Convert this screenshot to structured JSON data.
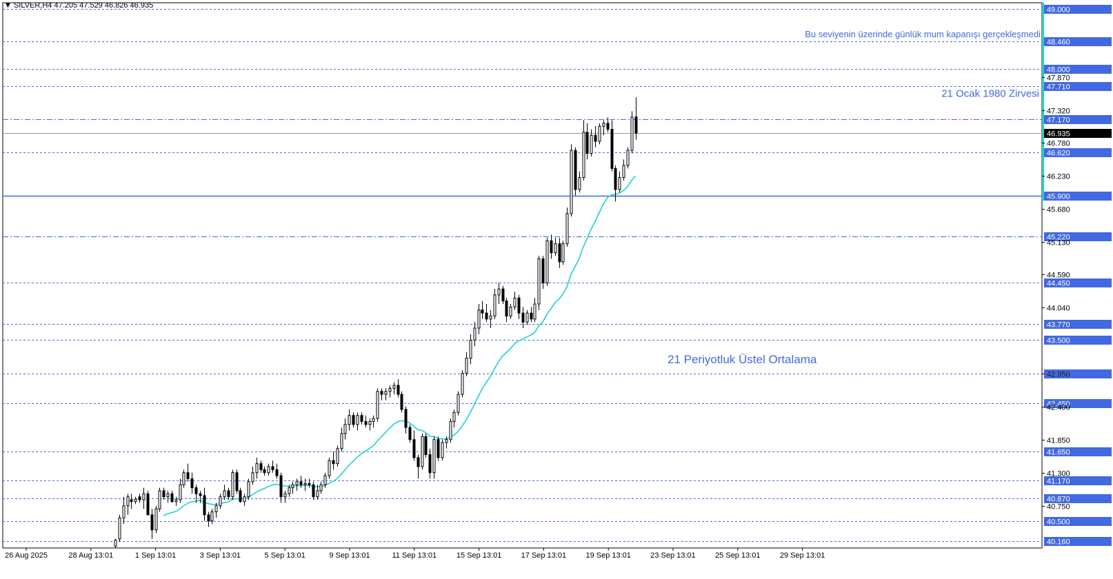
{
  "header": {
    "symbol": "SILVER,H4",
    "ohlc": "47.205 47.529 46.826 46.935"
  },
  "colors": {
    "background": "#ffffff",
    "candle": "#000000",
    "ema": "#1fd1cf",
    "level": "#4169e1",
    "current_price_line": "#8a9cb8",
    "axis_accent": "#1fd1cf"
  },
  "chart_data": {
    "type": "candlestick",
    "timeframe": "H4",
    "ylim": [
      40.05,
      49.1
    ],
    "price_axis_ticks": [
      47.87,
      47.32,
      46.78,
      46.23,
      45.68,
      45.13,
      44.59,
      44.04,
      42.95,
      42.4,
      41.85,
      41.3,
      40.75
    ],
    "time_axis_labels": [
      "26 Aug 2025",
      "28 Aug 13:01",
      "1 Sep 13:01",
      "3 Sep 13:01",
      "5 Sep 13:01",
      "9 Sep 13:01",
      "11 Sep 13:01",
      "15 Sep 13:01",
      "17 Sep 13:01",
      "19 Sep 13:01",
      "23 Sep 13:01",
      "25 Sep 13:01",
      "29 Sep 13:01"
    ],
    "current_price": 46.935,
    "levels": [
      {
        "price": 49.0,
        "label": "49.000",
        "style": "dashed"
      },
      {
        "price": 48.46,
        "label": "48.460",
        "style": "dashed"
      },
      {
        "price": 48.0,
        "label": "48.000",
        "style": "dashed"
      },
      {
        "price": 47.71,
        "label": "47.710",
        "style": "dashed"
      },
      {
        "price": 47.17,
        "label": "47.170",
        "style": "dashdot"
      },
      {
        "price": 46.62,
        "label": "46.620",
        "style": "dashed"
      },
      {
        "price": 45.9,
        "label": "45.900",
        "style": "solid"
      },
      {
        "price": 45.22,
        "label": "45.220",
        "style": "dashdot"
      },
      {
        "price": 44.45,
        "label": "44.450",
        "style": "dashed"
      },
      {
        "price": 43.77,
        "label": "43.770",
        "style": "dashed"
      },
      {
        "price": 43.5,
        "label": "43.500",
        "style": "dashed"
      },
      {
        "price": 42.95,
        "label": "42.950",
        "style": "dashed"
      },
      {
        "price": 42.45,
        "label": "42.450",
        "style": "dashed"
      },
      {
        "price": 41.65,
        "label": "41.650",
        "style": "dashed"
      },
      {
        "price": 41.17,
        "label": "41.170",
        "style": "dashed"
      },
      {
        "price": 40.87,
        "label": "40.870",
        "style": "dashed"
      },
      {
        "price": 40.5,
        "label": "40.500",
        "style": "dashed"
      },
      {
        "price": 40.16,
        "label": "40.160",
        "style": "dashed"
      }
    ],
    "series": [
      {
        "type": "candlestick",
        "ohlc": [
          [
            40.08,
            40.2,
            40.05,
            40.18
          ],
          [
            40.2,
            40.6,
            40.15,
            40.55
          ],
          [
            40.55,
            40.9,
            40.45,
            40.75
          ],
          [
            40.75,
            40.95,
            40.6,
            40.9
          ],
          [
            40.85,
            40.95,
            40.7,
            40.82
          ],
          [
            40.82,
            40.9,
            40.78,
            40.86
          ],
          [
            40.9,
            40.95,
            40.8,
            40.85
          ],
          [
            40.85,
            41.05,
            40.7,
            40.95
          ],
          [
            40.95,
            41.0,
            40.6,
            40.6
          ],
          [
            40.6,
            40.7,
            40.2,
            40.35
          ],
          [
            40.35,
            40.75,
            40.3,
            40.7
          ],
          [
            40.7,
            41.05,
            40.65,
            41.0
          ],
          [
            41.0,
            41.05,
            40.85,
            40.9
          ],
          [
            40.9,
            41.0,
            40.8,
            40.95
          ],
          [
            40.95,
            41.0,
            40.8,
            40.82
          ],
          [
            40.82,
            40.9,
            40.75,
            40.85
          ],
          [
            40.85,
            41.2,
            40.8,
            41.1
          ],
          [
            41.1,
            41.35,
            41.05,
            41.3
          ],
          [
            41.3,
            41.45,
            41.15,
            41.2
          ],
          [
            41.2,
            41.3,
            40.95,
            41.05
          ],
          [
            41.05,
            41.1,
            40.8,
            40.95
          ],
          [
            40.95,
            41.0,
            40.8,
            40.92
          ],
          [
            40.92,
            41.05,
            40.5,
            40.6
          ],
          [
            40.6,
            40.65,
            40.4,
            40.5
          ],
          [
            40.5,
            40.7,
            40.45,
            40.65
          ],
          [
            40.65,
            40.8,
            40.55,
            40.75
          ],
          [
            40.75,
            40.95,
            40.7,
            40.9
          ],
          [
            40.9,
            41.1,
            40.85,
            41.0
          ],
          [
            41.0,
            41.05,
            40.85,
            40.9
          ],
          [
            40.9,
            41.35,
            40.85,
            41.3
          ],
          [
            41.3,
            41.35,
            40.95,
            41.0
          ],
          [
            41.0,
            41.05,
            40.8,
            40.82
          ],
          [
            40.82,
            40.95,
            40.75,
            40.9
          ],
          [
            40.9,
            41.2,
            40.85,
            41.15
          ],
          [
            41.15,
            41.4,
            41.1,
            41.3
          ],
          [
            41.3,
            41.55,
            41.2,
            41.45
          ],
          [
            41.45,
            41.5,
            41.3,
            41.35
          ],
          [
            41.35,
            41.4,
            41.25,
            41.3
          ],
          [
            41.3,
            41.45,
            41.25,
            41.4
          ],
          [
            41.4,
            41.5,
            41.3,
            41.35
          ],
          [
            41.35,
            41.45,
            41.2,
            41.25
          ],
          [
            41.25,
            41.3,
            40.8,
            40.9
          ],
          [
            40.9,
            41.0,
            40.8,
            40.95
          ],
          [
            40.95,
            41.1,
            40.9,
            41.05
          ],
          [
            41.05,
            41.15,
            40.95,
            41.1
          ],
          [
            41.1,
            41.2,
            41.0,
            41.15
          ],
          [
            41.15,
            41.25,
            41.05,
            41.1
          ],
          [
            41.1,
            41.2,
            41.0,
            41.12
          ],
          [
            41.12,
            41.2,
            41.05,
            41.1
          ],
          [
            41.1,
            41.15,
            40.85,
            40.9
          ],
          [
            40.9,
            41.1,
            40.85,
            41.0
          ],
          [
            41.0,
            41.15,
            40.95,
            41.1
          ],
          [
            41.1,
            41.3,
            41.05,
            41.25
          ],
          [
            41.25,
            41.55,
            41.2,
            41.5
          ],
          [
            41.5,
            41.65,
            41.35,
            41.45
          ],
          [
            41.45,
            41.75,
            41.4,
            41.7
          ],
          [
            41.7,
            42.05,
            41.65,
            41.95
          ],
          [
            41.95,
            42.2,
            41.85,
            42.1
          ],
          [
            42.1,
            42.35,
            42.0,
            42.25
          ],
          [
            42.25,
            42.3,
            42.05,
            42.1
          ],
          [
            42.1,
            42.3,
            42.0,
            42.25
          ],
          [
            42.25,
            42.3,
            42.1,
            42.15
          ],
          [
            42.15,
            42.25,
            42.05,
            42.1
          ],
          [
            42.1,
            42.2,
            42.0,
            42.15
          ],
          [
            42.15,
            42.25,
            42.05,
            42.2
          ],
          [
            42.2,
            42.7,
            42.15,
            42.65
          ],
          [
            42.65,
            42.7,
            42.5,
            42.6
          ],
          [
            42.6,
            42.7,
            42.5,
            42.65
          ],
          [
            42.65,
            42.75,
            42.55,
            42.7
          ],
          [
            42.7,
            42.8,
            42.6,
            42.75
          ],
          [
            42.75,
            42.85,
            42.55,
            42.6
          ],
          [
            42.6,
            42.65,
            42.3,
            42.35
          ],
          [
            42.35,
            42.4,
            41.95,
            42.05
          ],
          [
            42.05,
            42.1,
            41.8,
            41.85
          ],
          [
            41.85,
            42.0,
            41.5,
            41.55
          ],
          [
            41.55,
            41.6,
            41.2,
            41.4
          ],
          [
            41.4,
            41.95,
            41.35,
            41.9
          ],
          [
            41.9,
            41.95,
            41.55,
            41.6
          ],
          [
            41.6,
            41.7,
            41.2,
            41.3
          ],
          [
            41.3,
            41.9,
            41.2,
            41.85
          ],
          [
            41.85,
            41.9,
            41.5,
            41.55
          ],
          [
            41.55,
            41.85,
            41.5,
            41.8
          ],
          [
            41.8,
            41.9,
            41.7,
            41.85
          ],
          [
            41.85,
            42.2,
            41.8,
            42.15
          ],
          [
            42.15,
            42.35,
            42.05,
            42.3
          ],
          [
            42.3,
            42.65,
            42.25,
            42.6
          ],
          [
            42.6,
            43.0,
            42.55,
            42.95
          ],
          [
            42.95,
            43.3,
            42.9,
            43.2
          ],
          [
            43.2,
            43.6,
            43.1,
            43.5
          ],
          [
            43.5,
            43.8,
            43.4,
            43.7
          ],
          [
            43.7,
            44.1,
            43.6,
            44.0
          ],
          [
            44.0,
            44.15,
            43.85,
            43.95
          ],
          [
            43.95,
            44.1,
            43.8,
            43.85
          ],
          [
            43.85,
            44.0,
            43.7,
            43.9
          ],
          [
            43.9,
            44.35,
            43.85,
            44.25
          ],
          [
            44.25,
            44.45,
            44.1,
            44.35
          ],
          [
            44.35,
            44.4,
            44.1,
            44.15
          ],
          [
            44.15,
            44.2,
            43.8,
            43.9
          ],
          [
            43.9,
            44.1,
            43.85,
            44.05
          ],
          [
            44.05,
            44.3,
            44.0,
            44.2
          ],
          [
            44.2,
            44.25,
            43.85,
            43.95
          ],
          [
            43.95,
            44.05,
            43.7,
            43.8
          ],
          [
            43.8,
            44.0,
            43.75,
            43.95
          ],
          [
            43.95,
            44.05,
            43.8,
            43.85
          ],
          [
            43.85,
            44.2,
            43.8,
            44.1
          ],
          [
            44.1,
            44.9,
            44.0,
            44.85
          ],
          [
            44.85,
            44.9,
            44.35,
            44.45
          ],
          [
            44.45,
            45.2,
            44.4,
            45.15
          ],
          [
            45.15,
            45.25,
            44.85,
            44.95
          ],
          [
            44.95,
            45.2,
            44.9,
            45.1
          ],
          [
            45.1,
            45.2,
            44.7,
            44.8
          ],
          [
            44.8,
            45.15,
            44.75,
            45.1
          ],
          [
            45.1,
            45.7,
            45.05,
            45.6
          ],
          [
            45.6,
            46.75,
            45.55,
            46.65
          ],
          [
            46.65,
            46.7,
            45.9,
            46.0
          ],
          [
            46.0,
            46.3,
            45.95,
            46.2
          ],
          [
            46.2,
            47.15,
            46.15,
            46.95
          ],
          [
            46.95,
            47.1,
            46.5,
            46.6
          ],
          [
            46.6,
            47.0,
            46.55,
            46.9
          ],
          [
            46.9,
            47.05,
            46.7,
            46.8
          ],
          [
            46.8,
            47.1,
            46.75,
            47.05
          ],
          [
            47.05,
            47.15,
            46.9,
            47.1
          ],
          [
            47.1,
            47.2,
            46.95,
            47.0
          ],
          [
            47.0,
            47.15,
            46.3,
            46.35
          ],
          [
            46.35,
            46.4,
            45.8,
            46.0
          ],
          [
            46.0,
            46.3,
            45.95,
            46.2
          ],
          [
            46.2,
            46.5,
            46.15,
            46.4
          ],
          [
            46.4,
            46.7,
            46.35,
            46.65
          ],
          [
            46.65,
            47.3,
            46.6,
            47.2
          ],
          [
            47.205,
            47.529,
            46.826,
            46.935
          ]
        ]
      },
      {
        "name": "21 Periyotluk Üstel Ortalama",
        "type": "line",
        "period": 21
      }
    ],
    "annotations": [
      {
        "text": "Bu seviyenin üzerinde günlük mum kapanışı gerçekleşmedi",
        "price": 48.46
      },
      {
        "text": "21 Ocak 1980 Zirvesi",
        "price": 47.71
      },
      {
        "text": "21 Periyotluk Üstel Ortalama",
        "near": "ema-line"
      }
    ]
  }
}
